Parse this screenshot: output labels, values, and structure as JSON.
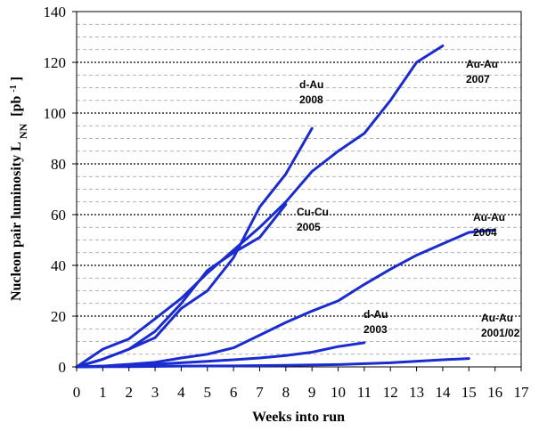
{
  "chart_data": {
    "type": "line",
    "title": "",
    "xlabel": "Weeks into run",
    "ylabel": "Nucleon pair luminosity L",
    "ylabel_sub": "NN",
    "ylabel_unit": "[pb",
    "ylabel_unit_sup": "-1",
    "ylabel_unit_end": "]",
    "xlim": [
      0,
      17
    ],
    "ylim": [
      0,
      140
    ],
    "x_ticks": [
      "0",
      "1",
      "2",
      "3",
      "4",
      "5",
      "6",
      "7",
      "8",
      "9",
      "10",
      "11",
      "12",
      "13",
      "14",
      "15",
      "16",
      "17"
    ],
    "y_ticks": [
      "0",
      "20",
      "40",
      "60",
      "80",
      "100",
      "120",
      "140"
    ],
    "grid": "horizontal",
    "line_color": "#1a2ccf",
    "series": [
      {
        "label_line1": "Au-Au",
        "label_line2": "2007",
        "x": [
          0,
          1,
          2,
          3,
          4,
          5,
          6,
          7,
          8,
          9,
          10,
          11,
          12,
          13,
          14
        ],
        "y": [
          0,
          7,
          11,
          19,
          27,
          37,
          46,
          55,
          65,
          77,
          85,
          92,
          105,
          120,
          126.5
        ]
      },
      {
        "label_line1": "d-Au",
        "label_line2": "2008",
        "x": [
          0,
          1,
          2,
          3,
          4,
          5,
          6,
          7,
          8,
          9
        ],
        "y": [
          0,
          3,
          7,
          11.5,
          23,
          30,
          43,
          63,
          76,
          94
        ]
      },
      {
        "label_line1": "Cu-Cu",
        "label_line2": "2005",
        "x": [
          0,
          1,
          2,
          3,
          4,
          5,
          6,
          7,
          8
        ],
        "y": [
          0,
          3,
          7,
          14,
          25,
          38,
          45,
          51,
          64
        ]
      },
      {
        "label_line1": "Au-Au",
        "label_line2": "2004",
        "x": [
          0,
          1,
          2,
          3,
          4,
          5,
          6,
          7,
          8,
          9,
          10,
          11,
          12,
          13,
          14,
          15,
          16
        ],
        "y": [
          0,
          0.3,
          1,
          1.8,
          3.5,
          5,
          7.5,
          12.5,
          17.5,
          22,
          26,
          32.5,
          38.5,
          44,
          48.5,
          53,
          54
        ]
      },
      {
        "label_line1": "d-Au",
        "label_line2": "2003",
        "x": [
          0,
          1,
          2,
          3,
          4,
          5,
          6,
          7,
          8,
          9,
          10,
          11
        ],
        "y": [
          0,
          0.3,
          0.6,
          1,
          1.6,
          2.2,
          2.8,
          3.5,
          4.5,
          5.8,
          8,
          9.5
        ]
      },
      {
        "label_line1": "Au-Au",
        "label_line2": "2001/02",
        "x": [
          0,
          2,
          4,
          6,
          8,
          10,
          12,
          14,
          15
        ],
        "y": [
          0,
          0.1,
          0.3,
          0.4,
          0.6,
          0.9,
          1.6,
          2.8,
          3.3
        ]
      }
    ]
  }
}
